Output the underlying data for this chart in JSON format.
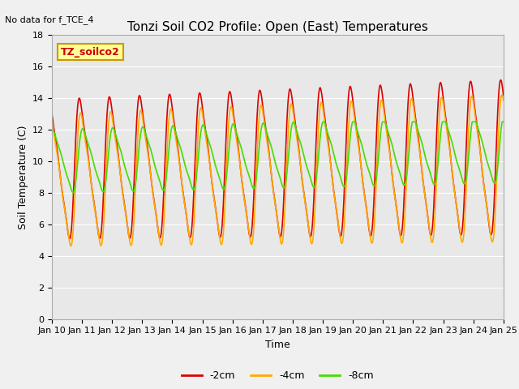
{
  "title": "Tonzi Soil CO2 Profile: Open (East) Temperatures",
  "no_data_label": "No data for f_TCE_4",
  "site_label": "TZ_soilco2",
  "xlabel": "Time",
  "ylabel": "Soil Temperature (C)",
  "ylim": [
    0,
    18
  ],
  "tick_labels": [
    "Jan 10",
    "Jan 11",
    "Jan 12",
    "Jan 13",
    "Jan 14",
    "Jan 15",
    "Jan 16",
    "Jan 17",
    "Jan 18",
    "Jan 19",
    "Jan 20",
    "Jan 21",
    "Jan 22",
    "Jan 23",
    "Jan 24",
    "Jan 25"
  ],
  "series": {
    "neg2cm": {
      "color": "#dd0000",
      "label": "-2cm",
      "lw": 1.2
    },
    "neg4cm": {
      "color": "#ffaa00",
      "label": "-4cm",
      "lw": 1.2
    },
    "neg8cm": {
      "color": "#44dd00",
      "label": "-8cm",
      "lw": 1.2
    }
  },
  "bg_color": "#e8e8e8",
  "grid_color": "#ffffff",
  "site_box_color": "#ffff99",
  "site_text_color": "#cc0000",
  "fig_bg": "#f0f0f0",
  "title_fontsize": 11,
  "label_fontsize": 9,
  "tick_fontsize": 8
}
